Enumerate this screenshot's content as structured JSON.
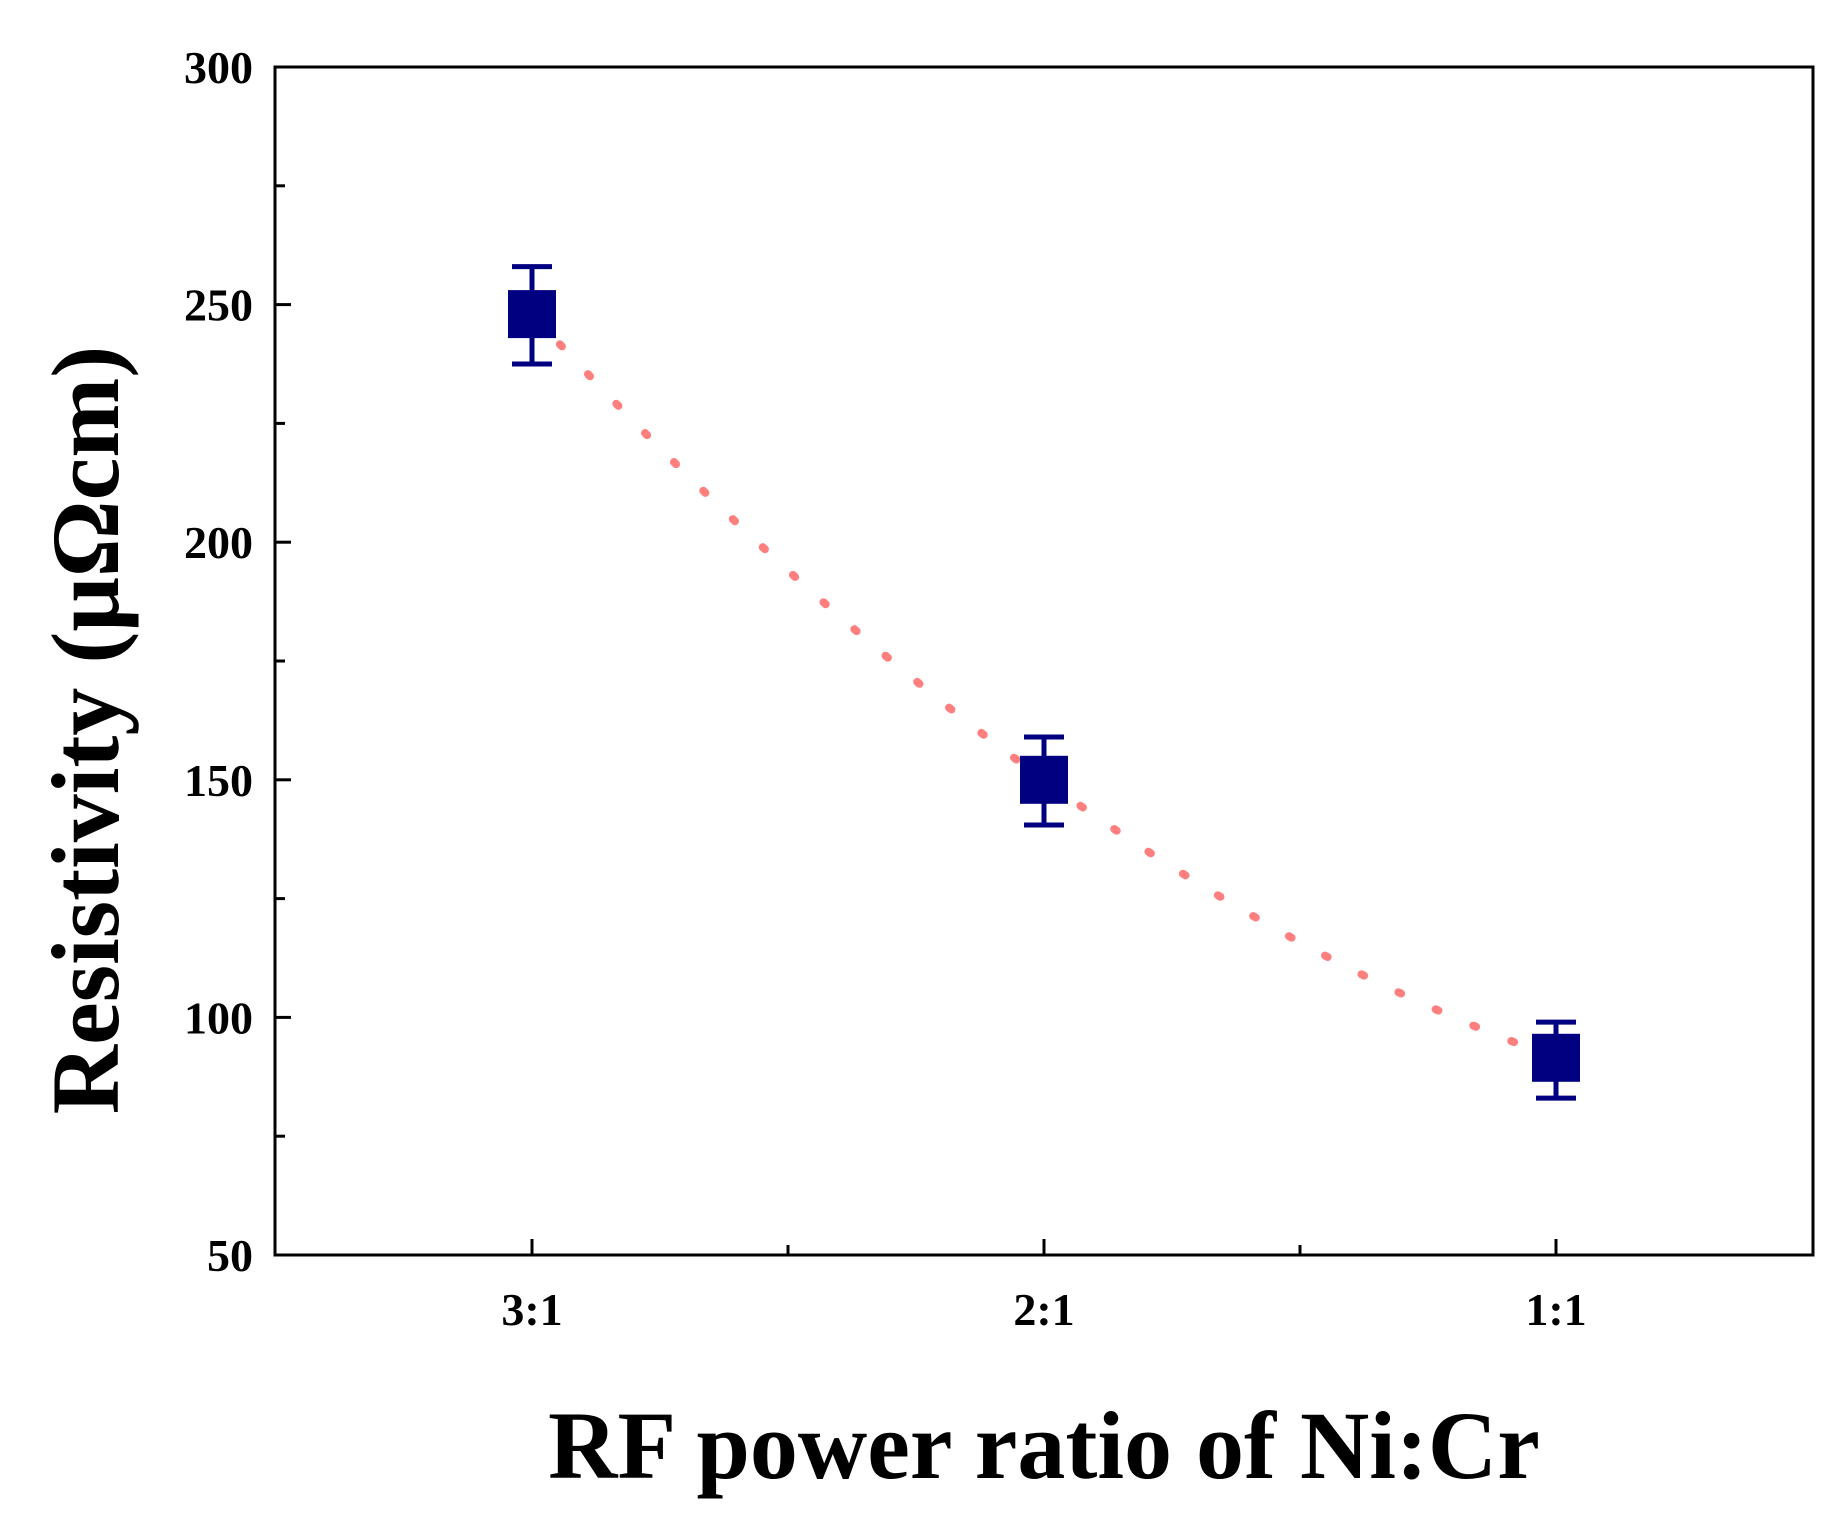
{
  "chart_data": {
    "type": "scatter",
    "title": "",
    "xlabel": "RF power ratio of Ni:Cr",
    "ylabel": "Resistivity (μΩcm)",
    "categories": [
      "3:1",
      "2:1",
      "1:1"
    ],
    "ylim": [
      50,
      300
    ],
    "y_major_ticks": [
      50,
      100,
      150,
      200,
      250,
      300
    ],
    "y_tick_labels": [
      "50",
      "100",
      "150",
      "200",
      "250",
      "300"
    ],
    "y_minor_ticks": [
      75,
      125,
      175,
      225,
      275
    ],
    "grid": false,
    "legend": "none",
    "series": [
      {
        "name": "Resistivity",
        "values": [
          248,
          150,
          91.5
        ],
        "error_low": [
          237.5,
          140.5,
          83
        ],
        "error_high": [
          258,
          159,
          99
        ],
        "marker": "square",
        "color": "#000080"
      }
    ],
    "trend_line": {
      "style": "dotted",
      "color": "#ff7f7f",
      "values": [
        248,
        150,
        91.5
      ]
    }
  }
}
